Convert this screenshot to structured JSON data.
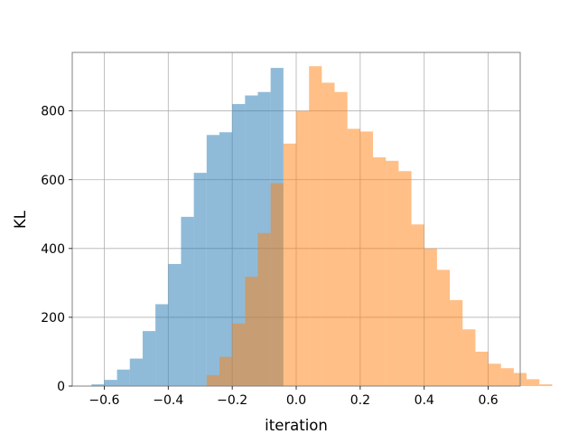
{
  "chart_data": {
    "type": "histogram",
    "xlabel": "iteration",
    "ylabel": "KL",
    "xlim": [
      -0.7,
      0.7
    ],
    "ylim": [
      0,
      970
    ],
    "grid": true,
    "xticks": [
      -0.6,
      -0.4,
      -0.2,
      0.0,
      0.2,
      0.4,
      0.6
    ],
    "xtick_labels": [
      "−0.6",
      "−0.4",
      "−0.2",
      "0.0",
      "0.2",
      "0.4",
      "0.6"
    ],
    "yticks": [
      0,
      200,
      400,
      600,
      800
    ],
    "ytick_labels": [
      "0",
      "200",
      "400",
      "600",
      "800"
    ],
    "series": [
      {
        "color": "#1f77b4",
        "alpha": 0.5,
        "bin_start": -0.64,
        "bin_width": 0.04,
        "counts": [
          5,
          18,
          48,
          80,
          160,
          238,
          355,
          492,
          620,
          730,
          738,
          820,
          845,
          855,
          925,
          0
        ]
      },
      {
        "color": "#ff7f0e",
        "alpha": 0.5,
        "bin_start": -0.28,
        "bin_width": 0.04,
        "counts": [
          32,
          85,
          182,
          318,
          445,
          590,
          705,
          800,
          930,
          882,
          855,
          748,
          740,
          665,
          655,
          625,
          470,
          400,
          338,
          250,
          165,
          100,
          65,
          52,
          38,
          20,
          5
        ]
      }
    ],
    "overlap_color": "#c8a07a"
  }
}
